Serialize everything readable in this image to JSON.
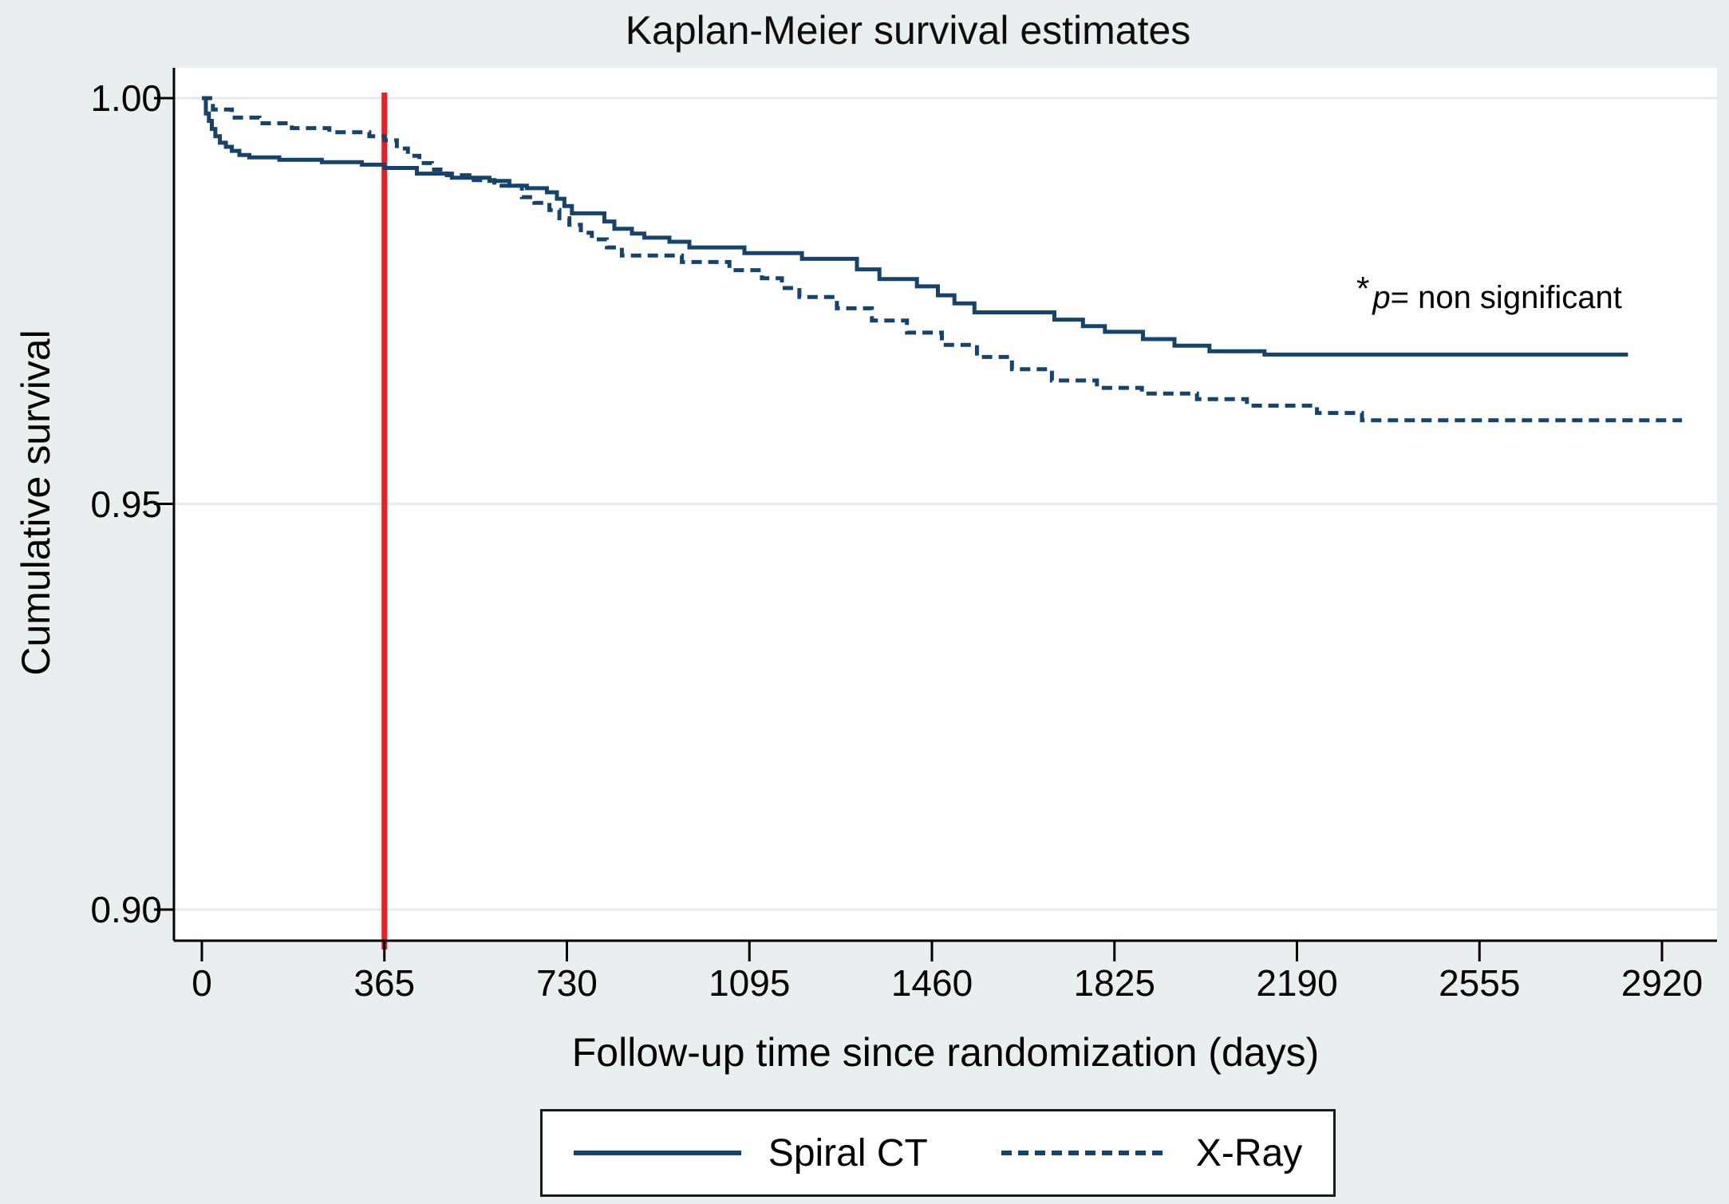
{
  "page": {
    "background": "#e9eef1",
    "plot_background": "#ffffff"
  },
  "annotation": {
    "star": "*",
    "p": "p",
    "rest": "= non significant"
  },
  "chart_data": {
    "type": "line",
    "chart_style": "kaplan-meier-step",
    "title": "Kaplan-Meier survival estimates",
    "xlabel": "Follow-up time since randomization (days)",
    "ylabel": "Cumulative survival",
    "xlim": [
      0,
      2920
    ],
    "ylim": [
      0.9,
      1.0
    ],
    "xticks": [
      0,
      365,
      730,
      1095,
      1460,
      1825,
      2190,
      2555,
      2920
    ],
    "yticks": [
      {
        "label": "1.00",
        "value": 1.0
      },
      {
        "label": "0.95",
        "value": 0.95
      },
      {
        "label": "0.90",
        "value": 0.9
      }
    ],
    "grid": {
      "horizontal": true,
      "vertical": false,
      "color": "#e2ebf0"
    },
    "annotation": "*p= non significant",
    "reference_line": {
      "axis": "x",
      "value": 365,
      "color": "#ee1c23"
    },
    "legend_position": "bottom-center",
    "axis_color": "#000000",
    "series": [
      {
        "name": "Spiral CT",
        "line_style": "solid",
        "color": "#16436b",
        "points": [
          [
            0,
            1.0
          ],
          [
            8,
            0.9981
          ],
          [
            14,
            0.9972
          ],
          [
            20,
            0.9962
          ],
          [
            27,
            0.9953
          ],
          [
            36,
            0.9945
          ],
          [
            48,
            0.994
          ],
          [
            60,
            0.9935
          ],
          [
            75,
            0.993
          ],
          [
            95,
            0.9927
          ],
          [
            155,
            0.9924
          ],
          [
            240,
            0.9921
          ],
          [
            320,
            0.9918
          ],
          [
            365,
            0.9914
          ],
          [
            430,
            0.9907
          ],
          [
            500,
            0.9902
          ],
          [
            575,
            0.9898
          ],
          [
            615,
            0.9892
          ],
          [
            650,
            0.9889
          ],
          [
            690,
            0.9884
          ],
          [
            710,
            0.9876
          ],
          [
            725,
            0.9867
          ],
          [
            740,
            0.9858
          ],
          [
            805,
            0.9848
          ],
          [
            825,
            0.9839
          ],
          [
            860,
            0.9833
          ],
          [
            885,
            0.9828
          ],
          [
            935,
            0.9823
          ],
          [
            975,
            0.9816
          ],
          [
            1085,
            0.9809
          ],
          [
            1200,
            0.9802
          ],
          [
            1310,
            0.9789
          ],
          [
            1355,
            0.9777
          ],
          [
            1430,
            0.9768
          ],
          [
            1472,
            0.9757
          ],
          [
            1505,
            0.9747
          ],
          [
            1545,
            0.9736
          ],
          [
            1705,
            0.9727
          ],
          [
            1762,
            0.9719
          ],
          [
            1806,
            0.9712
          ],
          [
            1882,
            0.9703
          ],
          [
            1945,
            0.9695
          ],
          [
            2015,
            0.9688
          ],
          [
            2125,
            0.9684
          ],
          [
            2852,
            0.9684
          ]
        ]
      },
      {
        "name": "X-Ray",
        "line_style": "dashed",
        "color": "#16436b",
        "points": [
          [
            0,
            1.0
          ],
          [
            22,
            0.9986
          ],
          [
            60,
            0.9976
          ],
          [
            115,
            0.9969
          ],
          [
            180,
            0.9963
          ],
          [
            255,
            0.9958
          ],
          [
            335,
            0.9953
          ],
          [
            365,
            0.9948
          ],
          [
            390,
            0.9938
          ],
          [
            412,
            0.9929
          ],
          [
            435,
            0.992
          ],
          [
            460,
            0.9912
          ],
          [
            490,
            0.9905
          ],
          [
            535,
            0.9899
          ],
          [
            585,
            0.9892
          ],
          [
            640,
            0.9878
          ],
          [
            665,
            0.9871
          ],
          [
            695,
            0.9862
          ],
          [
            715,
            0.9852
          ],
          [
            735,
            0.9844
          ],
          [
            758,
            0.9834
          ],
          [
            780,
            0.9826
          ],
          [
            810,
            0.9816
          ],
          [
            840,
            0.9806
          ],
          [
            960,
            0.9798
          ],
          [
            1055,
            0.9788
          ],
          [
            1120,
            0.9778
          ],
          [
            1160,
            0.9766
          ],
          [
            1195,
            0.9755
          ],
          [
            1270,
            0.9741
          ],
          [
            1340,
            0.9726
          ],
          [
            1410,
            0.9711
          ],
          [
            1480,
            0.9696
          ],
          [
            1550,
            0.9681
          ],
          [
            1620,
            0.9666
          ],
          [
            1700,
            0.9652
          ],
          [
            1790,
            0.9643
          ],
          [
            1880,
            0.9636
          ],
          [
            1990,
            0.9629
          ],
          [
            2090,
            0.9621
          ],
          [
            2230,
            0.9612
          ],
          [
            2320,
            0.9603
          ],
          [
            2960,
            0.9603
          ]
        ]
      }
    ]
  }
}
